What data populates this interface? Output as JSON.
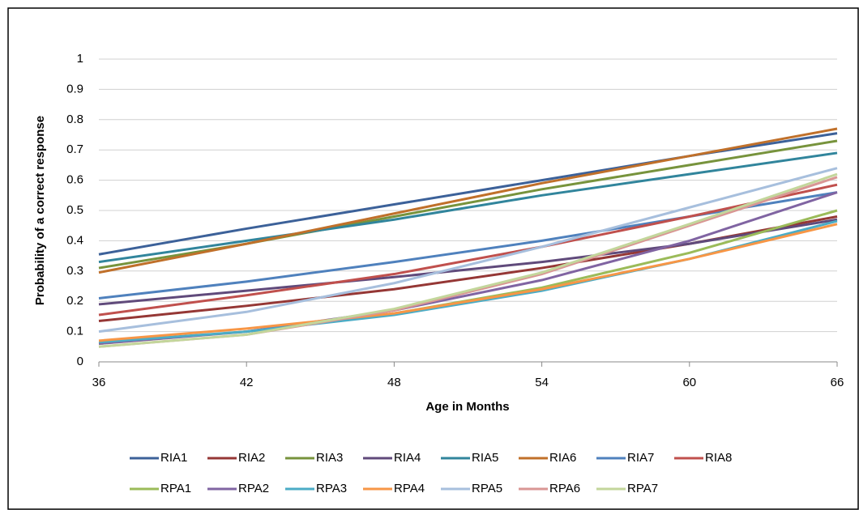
{
  "chart_data": {
    "type": "line",
    "y_label": "Probability of a correct response",
    "x_label": "Age in Months",
    "x": [
      36,
      42,
      48,
      54,
      60,
      66
    ],
    "xlim": [
      36,
      66
    ],
    "xticks": [
      36,
      42,
      48,
      54,
      60,
      66
    ],
    "ylim": [
      0,
      1
    ],
    "yticks": [
      0,
      0.1,
      0.2,
      0.3,
      0.4,
      0.5,
      0.6,
      0.7,
      0.8,
      0.9,
      1
    ],
    "grid": true,
    "legend": "bottom",
    "series": [
      {
        "name": "RIA1",
        "color": "#3c6199",
        "values": [
          0.355,
          0.44,
          0.52,
          0.6,
          0.68,
          0.755
        ]
      },
      {
        "name": "RIA2",
        "color": "#953735",
        "values": [
          0.135,
          0.185,
          0.24,
          0.31,
          0.39,
          0.48
        ]
      },
      {
        "name": "RIA3",
        "color": "#77933c",
        "values": [
          0.31,
          0.39,
          0.48,
          0.57,
          0.65,
          0.73
        ]
      },
      {
        "name": "RIA4",
        "color": "#604a7b",
        "values": [
          0.19,
          0.235,
          0.28,
          0.33,
          0.39,
          0.47
        ]
      },
      {
        "name": "RIA5",
        "color": "#31859c",
        "values": [
          0.33,
          0.4,
          0.47,
          0.55,
          0.62,
          0.69
        ]
      },
      {
        "name": "RIA6",
        "color": "#c0702a",
        "values": [
          0.295,
          0.39,
          0.49,
          0.59,
          0.68,
          0.77
        ]
      },
      {
        "name": "RIA7",
        "color": "#4f81bd",
        "values": [
          0.21,
          0.265,
          0.33,
          0.4,
          0.48,
          0.56
        ]
      },
      {
        "name": "RIA8",
        "color": "#c0504d",
        "values": [
          0.155,
          0.22,
          0.29,
          0.38,
          0.48,
          0.585
        ]
      },
      {
        "name": "RPA1",
        "color": "#9bbb59",
        "values": [
          0.06,
          0.1,
          0.16,
          0.245,
          0.36,
          0.5
        ]
      },
      {
        "name": "RPA2",
        "color": "#8064a2",
        "values": [
          0.06,
          0.1,
          0.17,
          0.27,
          0.4,
          0.56
        ]
      },
      {
        "name": "RPA3",
        "color": "#4bacc6",
        "values": [
          0.065,
          0.1,
          0.155,
          0.235,
          0.34,
          0.465
        ]
      },
      {
        "name": "RPA4",
        "color": "#f79646",
        "values": [
          0.07,
          0.11,
          0.16,
          0.24,
          0.34,
          0.455
        ]
      },
      {
        "name": "RPA5",
        "color": "#a7bfdd",
        "values": [
          0.1,
          0.165,
          0.26,
          0.38,
          0.51,
          0.64
        ]
      },
      {
        "name": "RPA6",
        "color": "#d99694",
        "values": [
          0.05,
          0.09,
          0.17,
          0.29,
          0.45,
          0.61
        ]
      },
      {
        "name": "RPA7",
        "color": "#c3d69b",
        "values": [
          0.05,
          0.09,
          0.175,
          0.295,
          0.455,
          0.62
        ]
      }
    ]
  }
}
